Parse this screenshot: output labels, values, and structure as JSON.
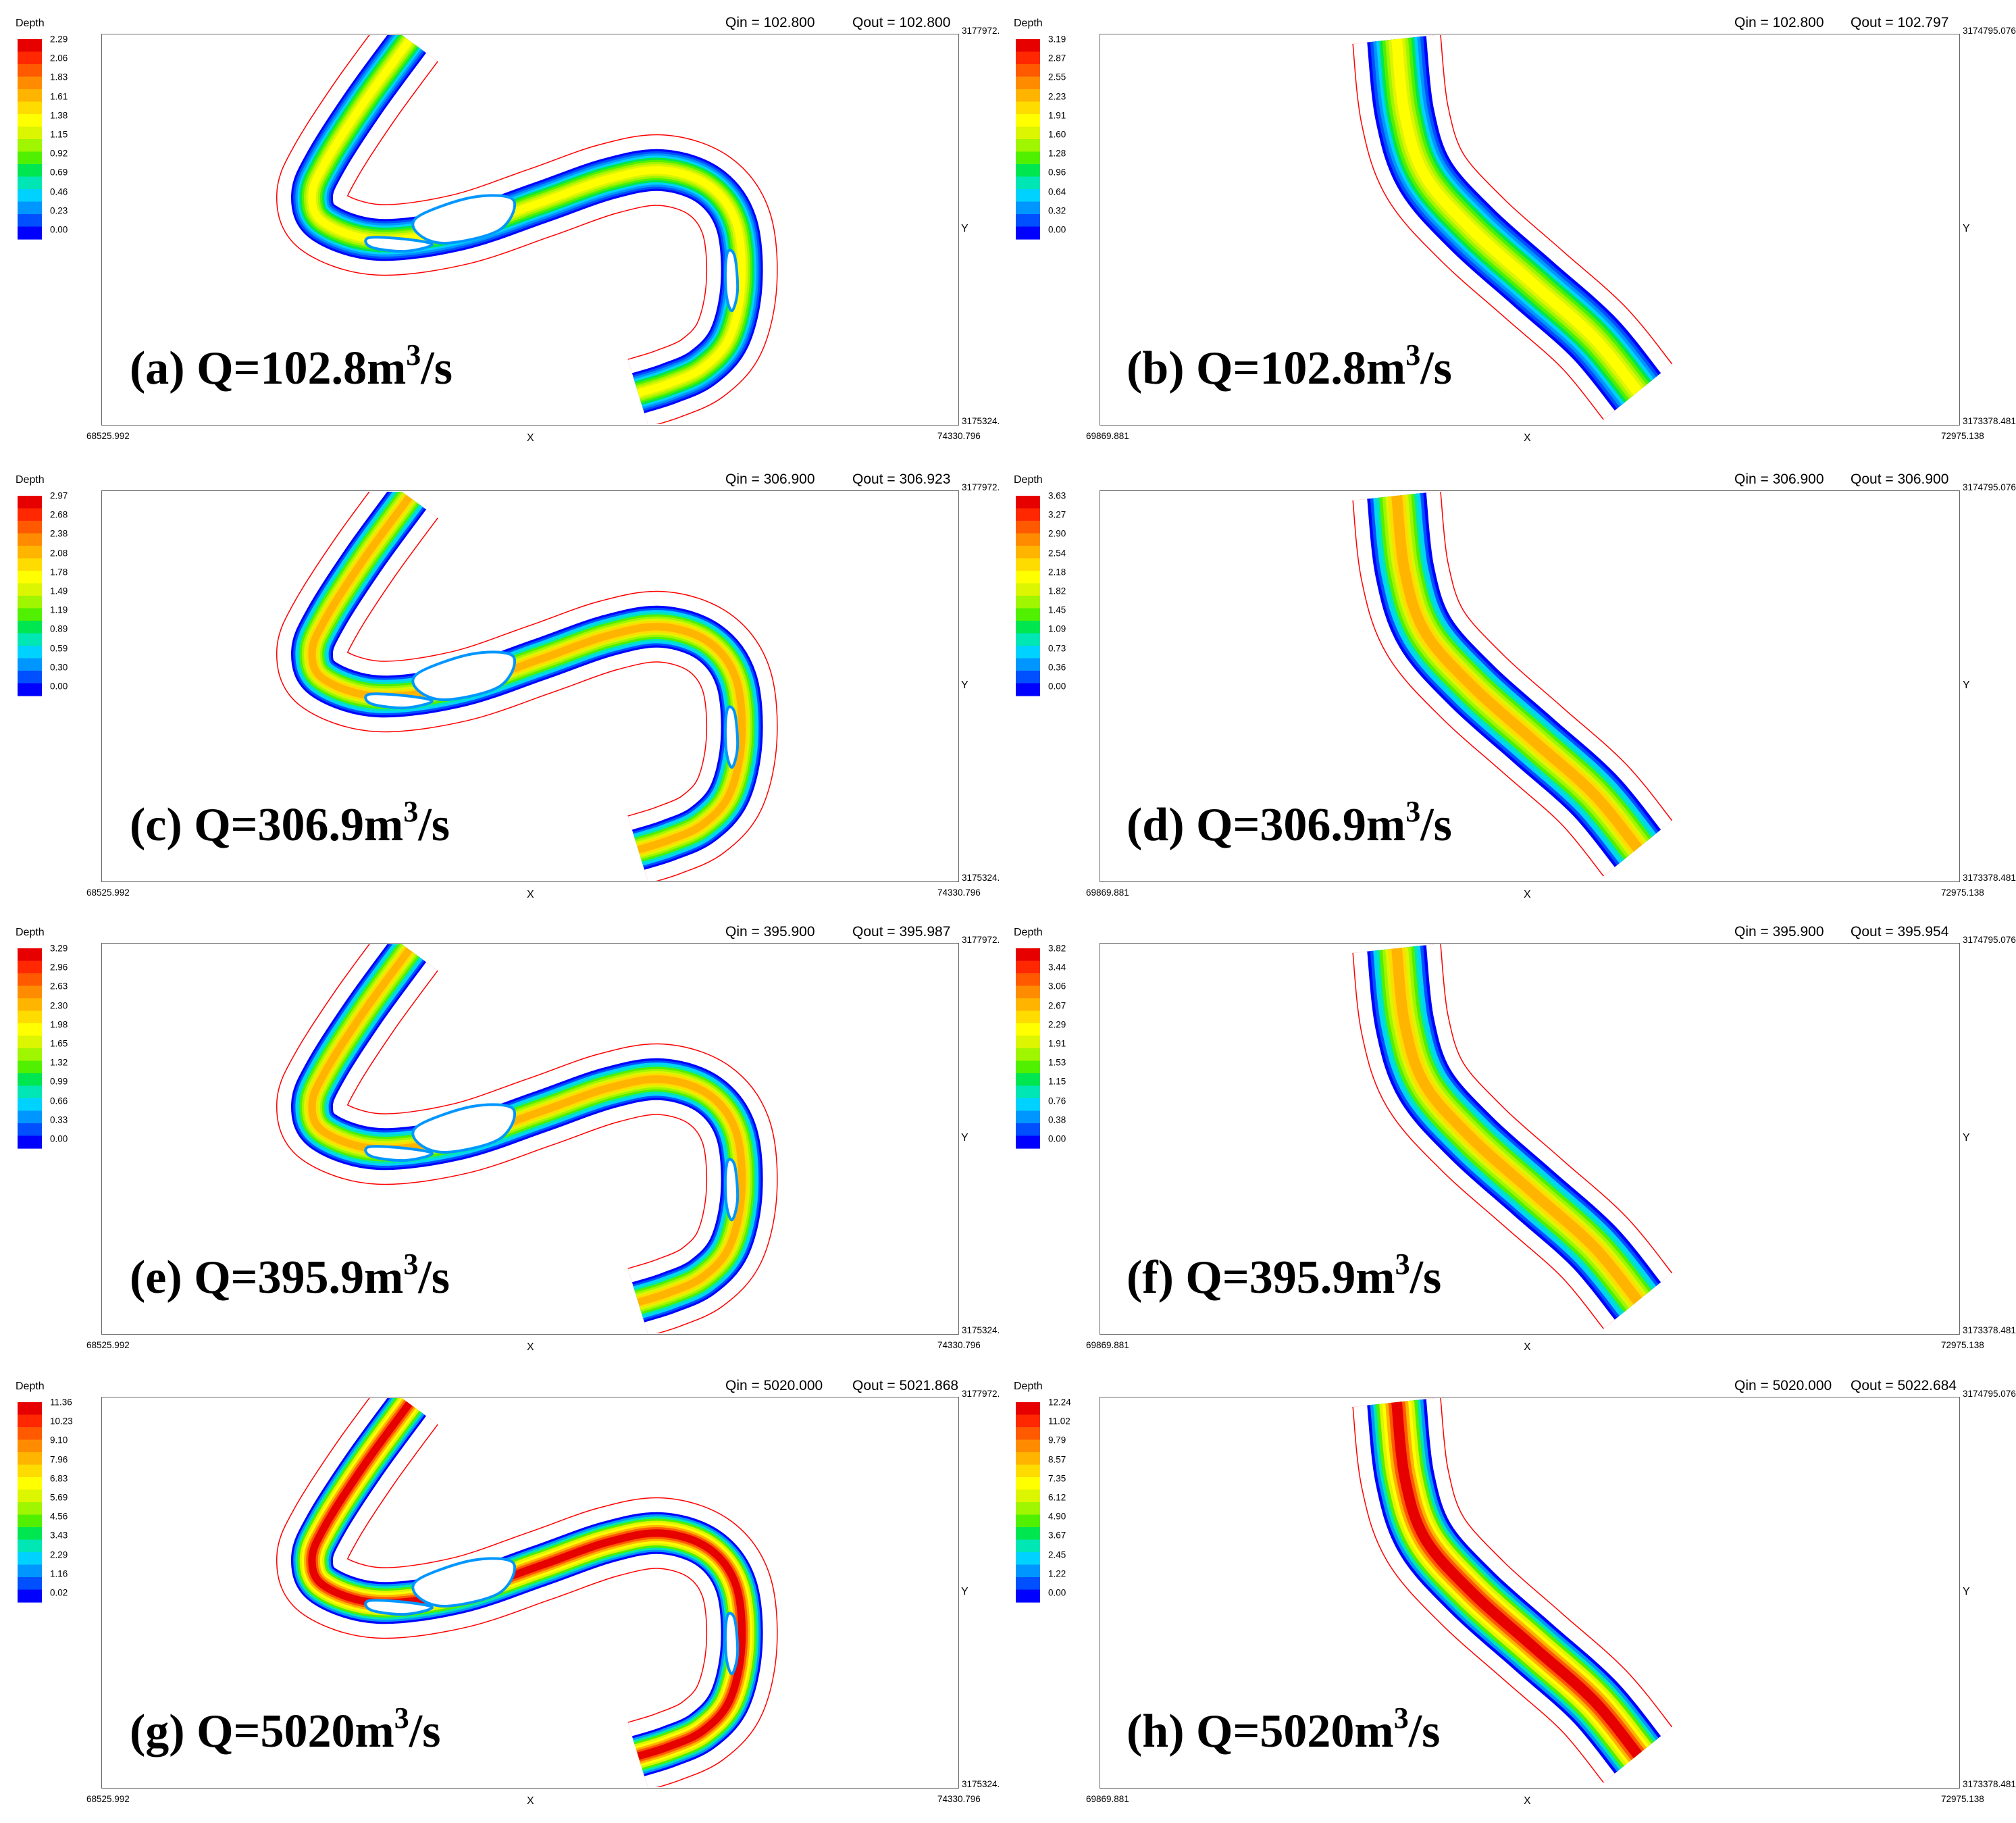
{
  "colors": {
    "scale": [
      "#0000ff",
      "#0050ff",
      "#0096ff",
      "#00d2ff",
      "#00e6b4",
      "#00e650",
      "#50f000",
      "#a0f500",
      "#dcf500",
      "#ffff00",
      "#ffdc00",
      "#ffb400",
      "#ff8c00",
      "#ff5a00",
      "#ff2800",
      "#e60000"
    ],
    "boundary": "#ff0000",
    "frame": "#666666"
  },
  "panels": [
    {
      "legend_title": "Depth",
      "legend_ticks": [
        "2.29",
        "2.06",
        "1.83",
        "1.61",
        "1.38",
        "1.15",
        "0.92",
        "0.69",
        "0.46",
        "0.23",
        "0.00"
      ],
      "qin_text": "Qin = 102.800",
      "qout_text": "Qout = 102.800",
      "ymax": "3177972.",
      "ymin": "3175324.",
      "xmin": "68525.992",
      "xmax": "74330.796",
      "xlabel": "X",
      "ylabel": "Y",
      "cap_prefix": "(a) Q=102.8m",
      "cap_sup": "3",
      "cap_suffix": "/s",
      "intensity": 0.35,
      "river": "s"
    },
    {
      "legend_title": "Depth",
      "legend_ticks": [
        "3.19",
        "2.87",
        "2.55",
        "2.23",
        "1.91",
        "1.60",
        "1.28",
        "0.96",
        "0.64",
        "0.32",
        "0.00"
      ],
      "qin_text": "Qin = 102.800",
      "qout_text": "Qout = 102.797",
      "ymax": "3174795.076",
      "ymin": "3173378.481",
      "xmin": "69869.881",
      "xmax": "72975.138",
      "xlabel": "X",
      "ylabel": "Y",
      "cap_prefix": "(b) Q=102.8m",
      "cap_sup": "3",
      "cap_suffix": "/s",
      "intensity": 0.35,
      "river": "bend"
    },
    {
      "legend_title": "Depth",
      "legend_ticks": [
        "2.97",
        "2.68",
        "2.38",
        "2.08",
        "1.78",
        "1.49",
        "1.19",
        "0.89",
        "0.59",
        "0.30",
        "0.00"
      ],
      "qin_text": "Qin = 306.900",
      "qout_text": "Qout = 306.923",
      "ymax": "3177972.",
      "ymin": "3175324.",
      "xmin": "68525.992",
      "xmax": "74330.796",
      "xlabel": "X",
      "ylabel": "Y",
      "cap_prefix": "(c) Q=306.9m",
      "cap_sup": "3",
      "cap_suffix": "/s",
      "intensity": 0.55,
      "river": "s"
    },
    {
      "legend_title": "Depth",
      "legend_ticks": [
        "3.63",
        "3.27",
        "2.90",
        "2.54",
        "2.18",
        "1.82",
        "1.45",
        "1.09",
        "0.73",
        "0.36",
        "0.00"
      ],
      "qin_text": "Qin = 306.900",
      "qout_text": "Qout = 306.900",
      "ymax": "3174795.076",
      "ymin": "3173378.481",
      "xmin": "69869.881",
      "xmax": "72975.138",
      "xlabel": "X",
      "ylabel": "Y",
      "cap_prefix": "(d) Q=306.9m",
      "cap_sup": "3",
      "cap_suffix": "/s",
      "intensity": 0.5,
      "river": "bend"
    },
    {
      "legend_title": "Depth",
      "legend_ticks": [
        "3.29",
        "2.96",
        "2.63",
        "2.30",
        "1.98",
        "1.65",
        "1.32",
        "0.99",
        "0.66",
        "0.33",
        "0.00"
      ],
      "qin_text": "Qin = 395.900",
      "qout_text": "Qout = 395.987",
      "ymax": "3177972.",
      "ymin": "3175324.",
      "xmin": "68525.992",
      "xmax": "74330.796",
      "xlabel": "X",
      "ylabel": "Y",
      "cap_prefix": "(e) Q=395.9m",
      "cap_sup": "3",
      "cap_suffix": "/s",
      "intensity": 0.6,
      "river": "s"
    },
    {
      "legend_title": "Depth",
      "legend_ticks": [
        "3.82",
        "3.44",
        "3.06",
        "2.67",
        "2.29",
        "1.91",
        "1.53",
        "1.15",
        "0.76",
        "0.38",
        "0.00"
      ],
      "qin_text": "Qin = 395.900",
      "qout_text": "Qout = 395.954",
      "ymax": "3174795.076",
      "ymin": "3173378.481",
      "xmin": "69869.881",
      "xmax": "72975.138",
      "xlabel": "X",
      "ylabel": "Y",
      "cap_prefix": "(f) Q=395.9m",
      "cap_sup": "3",
      "cap_suffix": "/s",
      "intensity": 0.55,
      "river": "bend"
    },
    {
      "legend_title": "Depth",
      "legend_ticks": [
        "11.36",
        "10.23",
        "9.10",
        "7.96",
        "6.83",
        "5.69",
        "4.56",
        "3.43",
        "2.29",
        "1.16",
        "0.02"
      ],
      "qin_text": "Qin = 5020.000",
      "qout_text": "Qout = 5021.868",
      "ymax": "3177972.",
      "ymin": "3175324.",
      "xmin": "68525.992",
      "xmax": "74330.796",
      "xlabel": "X",
      "ylabel": "Y",
      "cap_prefix": "(g) Q=5020m",
      "cap_sup": "3",
      "cap_suffix": "/s",
      "intensity": 1.0,
      "river": "s"
    },
    {
      "legend_title": "Depth",
      "legend_ticks": [
        "12.24",
        "11.02",
        "9.79",
        "8.57",
        "7.35",
        "6.12",
        "4.90",
        "3.67",
        "2.45",
        "1.22",
        "0.00"
      ],
      "qin_text": "Qin = 5020.000",
      "qout_text": "Qout = 5022.684",
      "ymax": "3174795.076",
      "ymin": "3173378.481",
      "xmin": "69869.881",
      "xmax": "72975.138",
      "xlabel": "X",
      "ylabel": "Y",
      "cap_prefix": "(h) Q=5020m",
      "cap_sup": "3",
      "cap_suffix": "/s",
      "intensity": 1.0,
      "river": "bend"
    }
  ]
}
